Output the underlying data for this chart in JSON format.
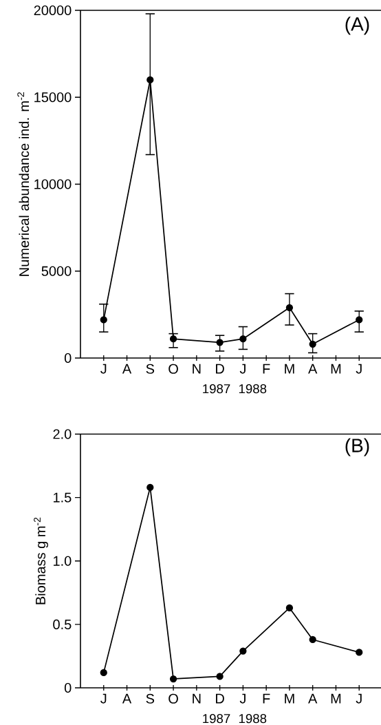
{
  "chart_data": [
    {
      "type": "line",
      "title": "(A)",
      "ylabel": "Numerical abundance ind. m$^{-2}$",
      "color": "#000000",
      "marker": "circle",
      "categories": [
        "J",
        "A",
        "S",
        "O",
        "N",
        "D",
        "J",
        "F",
        "M",
        "A",
        "M",
        "J"
      ],
      "values": [
        2200,
        null,
        16000,
        1100,
        null,
        900,
        1100,
        null,
        2900,
        800,
        null,
        2200
      ],
      "errors": [
        [
          1500,
          3100
        ],
        null,
        [
          11700,
          19800
        ],
        [
          600,
          1400
        ],
        null,
        [
          400,
          1300
        ],
        [
          500,
          1800
        ],
        null,
        [
          1900,
          3700
        ],
        [
          300,
          1400
        ],
        null,
        [
          1500,
          2700
        ]
      ],
      "ylim": [
        0,
        20000
      ],
      "yticks": [
        0,
        5000,
        10000,
        15000,
        20000
      ],
      "annotations": [
        "1987",
        "1988"
      ]
    },
    {
      "type": "line",
      "title": "(B)",
      "ylabel": "Biomass g m$^{-2}$",
      "color": "#000000",
      "marker": "circle",
      "categories": [
        "J",
        "A",
        "S",
        "O",
        "N",
        "D",
        "J",
        "F",
        "M",
        "A",
        "M",
        "J"
      ],
      "values": [
        0.12,
        null,
        1.58,
        0.07,
        null,
        0.09,
        0.29,
        null,
        0.63,
        0.38,
        null,
        0.28
      ],
      "ylim": [
        0,
        2
      ],
      "yticks": [
        0,
        0.5,
        {
          "value": 1,
          "label": "1.0"
        },
        1.5,
        {
          "value": 2,
          "label": "2.0"
        }
      ],
      "annotations": [
        "1987",
        "1988"
      ]
    }
  ]
}
